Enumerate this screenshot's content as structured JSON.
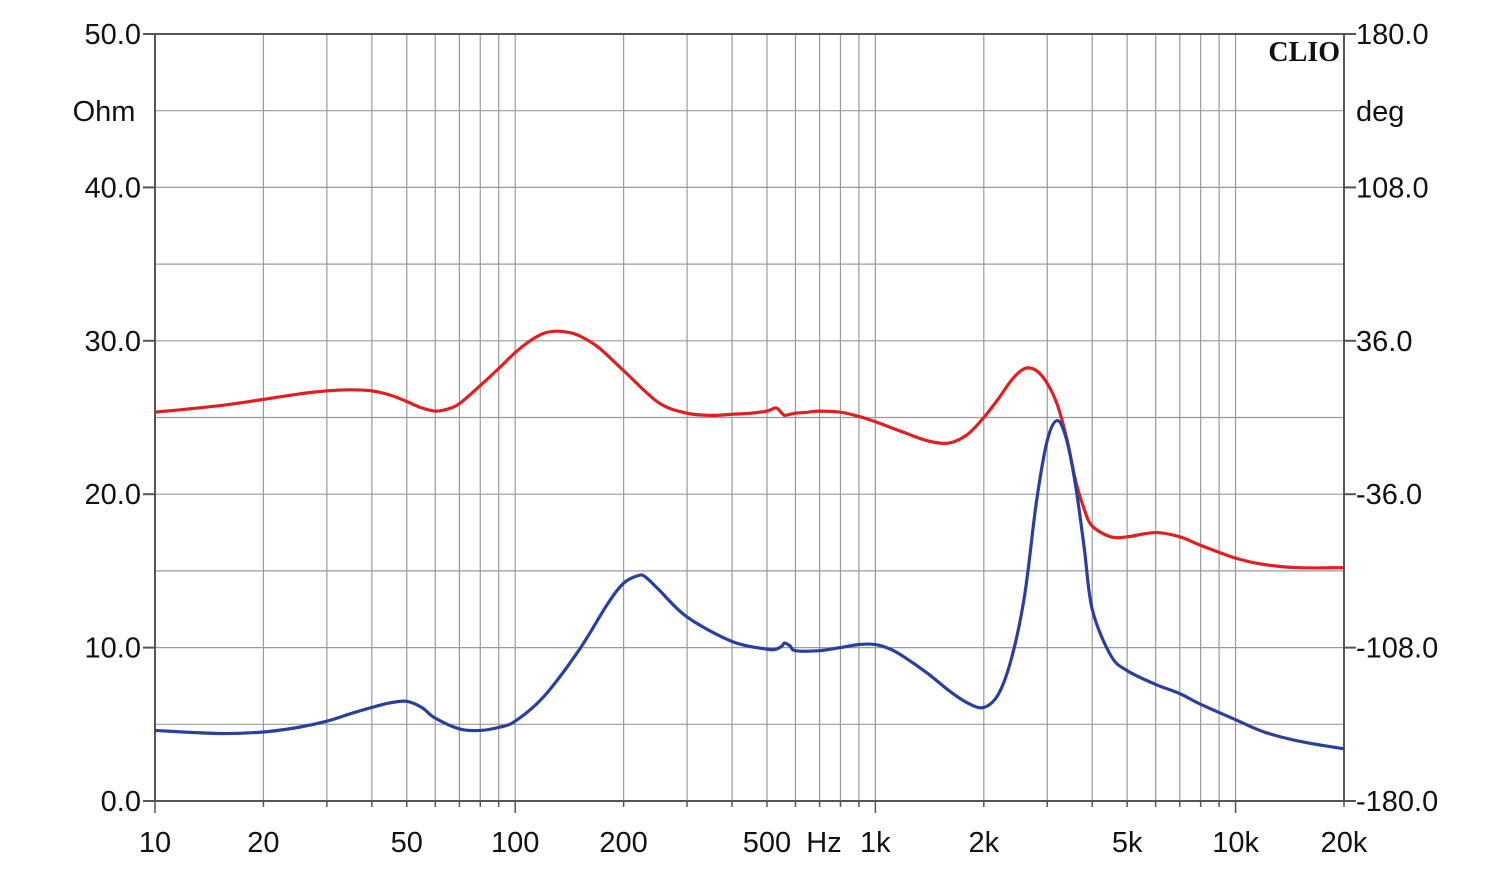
{
  "brand": "CLIO",
  "chart_data": {
    "type": "line",
    "x_scale": "log",
    "xlim": [
      10,
      20000
    ],
    "ylim_left": [
      0,
      50
    ],
    "ylim_right": [
      -180,
      180
    ],
    "ylabel_left": "Ohm",
    "ylabel_right": "deg",
    "grid": true,
    "x_ticks": [
      {
        "value": 10,
        "label": "10"
      },
      {
        "value": 20,
        "label": "20"
      },
      {
        "value": 50,
        "label": "50"
      },
      {
        "value": 100,
        "label": "100"
      },
      {
        "value": 200,
        "label": "200"
      },
      {
        "value": 500,
        "label": "500"
      },
      {
        "value": 720,
        "label": "Hz"
      },
      {
        "value": 1000,
        "label": "1k"
      },
      {
        "value": 2000,
        "label": "2k"
      },
      {
        "value": 5000,
        "label": "5k"
      },
      {
        "value": 10000,
        "label": "10k"
      },
      {
        "value": 20000,
        "label": "20k"
      }
    ],
    "y_ticks_left": [
      "0.0",
      "10.0",
      "20.0",
      "30.0",
      "40.0",
      "50.0"
    ],
    "y_ticks_left_values": [
      0,
      10,
      20,
      30,
      40,
      50
    ],
    "y_ticks_right": [
      "-180.0",
      "-108.0",
      "-36.0",
      "36.0",
      "108.0",
      "180.0"
    ],
    "series": [
      {
        "axis": "right",
        "color": "#e02020",
        "x": [
          10,
          15,
          20,
          25,
          30,
          35,
          40,
          45,
          50,
          55,
          60,
          65,
          70,
          80,
          90,
          100,
          110,
          120,
          130,
          140,
          150,
          170,
          200,
          250,
          300,
          350,
          400,
          450,
          500,
          530,
          550,
          560,
          580,
          600,
          650,
          700,
          800,
          900,
          1000,
          1200,
          1400,
          1600,
          1800,
          2000,
          2200,
          2400,
          2600,
          2800,
          3000,
          3200,
          3400,
          3600,
          3800,
          4000,
          4500,
          5000,
          6000,
          7000,
          8000,
          10000,
          12000,
          15000,
          20000
        ],
        "y": [
          2.5,
          5.5,
          8.5,
          11,
          12.5,
          13,
          12.5,
          10.5,
          7.5,
          4.5,
          3,
          4,
          6.5,
          15,
          23,
          30.5,
          36,
          39.5,
          40.5,
          40,
          38.5,
          33,
          22,
          7,
          2,
          1,
          1.5,
          2,
          3,
          4.5,
          2,
          1,
          1.5,
          2,
          2.5,
          3,
          2.5,
          0.5,
          -2,
          -7,
          -11,
          -12,
          -8,
          0,
          9,
          18,
          23,
          22,
          16,
          6,
          -10,
          -30,
          -43,
          -51,
          -56,
          -56,
          -54,
          -56,
          -60,
          -66,
          -69,
          -70.5,
          -70.5
        ]
      },
      {
        "axis": "left",
        "color": "#2b3f9c",
        "x": [
          10,
          15,
          20,
          25,
          30,
          35,
          40,
          45,
          50,
          55,
          60,
          70,
          80,
          90,
          100,
          120,
          150,
          180,
          200,
          220,
          230,
          250,
          300,
          400,
          500,
          530,
          550,
          560,
          580,
          600,
          700,
          800,
          900,
          1000,
          1100,
          1200,
          1400,
          1600,
          1800,
          2000,
          2200,
          2400,
          2600,
          2800,
          3000,
          3200,
          3400,
          3600,
          3800,
          4000,
          4500,
          5000,
          6000,
          7000,
          8000,
          10000,
          12000,
          15000,
          20000
        ],
        "y": [
          4.6,
          4.4,
          4.5,
          4.8,
          5.2,
          5.7,
          6.1,
          6.4,
          6.5,
          6.1,
          5.4,
          4.7,
          4.6,
          4.8,
          5.2,
          6.8,
          9.8,
          12.8,
          14.2,
          14.7,
          14.6,
          13.8,
          12,
          10.4,
          9.9,
          9.9,
          10.1,
          10.3,
          10.1,
          9.8,
          9.8,
          10.0,
          10.2,
          10.2,
          9.9,
          9.4,
          8.3,
          7.2,
          6.4,
          6.1,
          7.0,
          9.5,
          13.5,
          19.5,
          23.5,
          24.8,
          23.5,
          20.5,
          16.5,
          12.5,
          9.5,
          8.5,
          7.6,
          7.0,
          6.3,
          5.3,
          4.5,
          3.9,
          3.4
        ]
      }
    ]
  }
}
